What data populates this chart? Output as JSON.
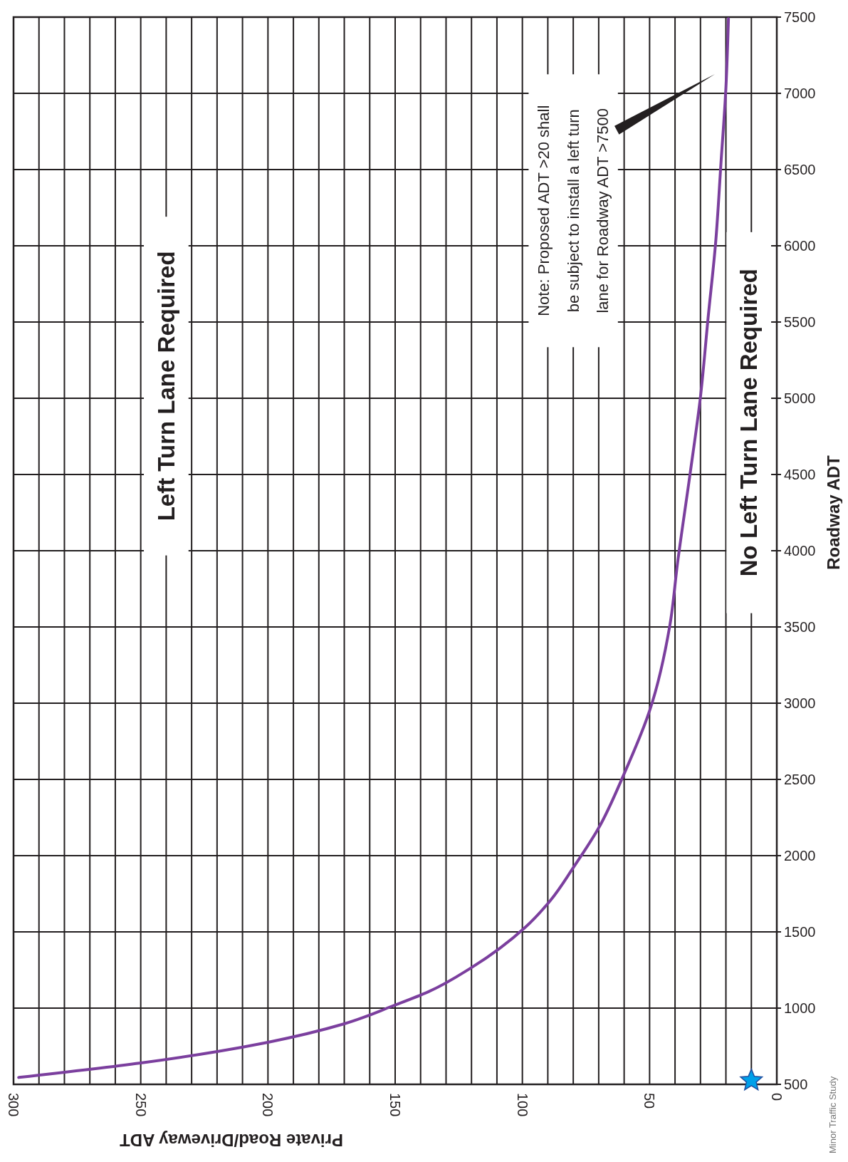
{
  "chart_data": {
    "type": "line",
    "xlabel": "Private Road/Driveway ADT",
    "ylabel": "Roadway ADT",
    "xlim": [
      300,
      0
    ],
    "xticks": [
      300,
      {
        "value": 290,
        "label": null
      },
      {
        "value": 280,
        "label": null
      },
      {
        "value": 270,
        "label": null
      },
      {
        "value": 260,
        "label": null
      },
      250,
      {
        "value": 240,
        "label": null
      },
      {
        "value": 230,
        "label": null
      },
      {
        "value": 220,
        "label": null
      },
      {
        "value": 210,
        "label": null
      },
      200,
      {
        "value": 190,
        "label": null
      },
      {
        "value": 180,
        "label": null
      },
      {
        "value": 170,
        "label": null
      },
      {
        "value": 160,
        "label": null
      },
      150,
      {
        "value": 140,
        "label": null
      },
      {
        "value": 130,
        "label": null
      },
      {
        "value": 120,
        "label": null
      },
      {
        "value": 110,
        "label": null
      },
      100,
      {
        "value": 90,
        "label": null
      },
      {
        "value": 80,
        "label": null
      },
      {
        "value": 70,
        "label": null
      },
      {
        "value": 60,
        "label": null
      },
      50,
      {
        "value": 40,
        "label": null
      },
      {
        "value": 30,
        "label": null
      },
      {
        "value": 20,
        "label": null
      },
      {
        "value": 10,
        "label": null
      },
      0
    ],
    "ylim": [
      500,
      7500
    ],
    "yticks": [
      500,
      1000,
      1500,
      2000,
      2500,
      3000,
      3500,
      4000,
      4500,
      5000,
      5500,
      6000,
      6500,
      7000,
      7500
    ],
    "grid": true,
    "series": [
      {
        "color": "#7b3f9e",
        "x": [
          298,
          250,
          220,
          200,
          170,
          151,
          137,
          120,
          99,
          89,
          80,
          70,
          60,
          50,
          42,
          39,
          34,
          30,
          27,
          24,
          22,
          20,
          19
        ],
        "values": [
          545,
          640,
          715,
          776,
          897,
          1014,
          1107,
          1266,
          1528,
          1706,
          1921,
          2182,
          2537,
          2950,
          3514,
          3921,
          4514,
          5010,
          5528,
          6028,
          6528,
          7037,
          7490
        ]
      },
      {
        "type": "scatter",
        "marker": "star",
        "color": "#00a0e9",
        "x": [
          10
        ],
        "values": [
          525
        ]
      }
    ],
    "annotations": [
      "Left Turn Lane Required",
      "No Left Turn Lane Required",
      "Note: Proposed ADT >20 shall\nbe subject to install a left turn\nlane for Roadway ADT >7500",
      "Minor Traffic Study"
    ]
  }
}
